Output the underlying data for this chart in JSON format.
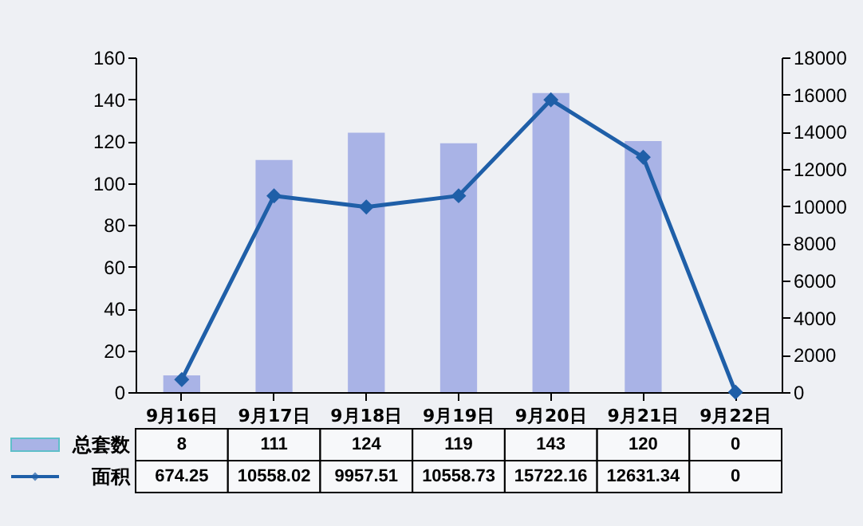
{
  "chart_data": {
    "type": "bar",
    "categories": [
      "9月16日",
      "9月17日",
      "9月18日",
      "9月19日",
      "9月20日",
      "9月21日",
      "9月22日"
    ],
    "series": [
      {
        "name": "总套数",
        "color": "#a9b3e6",
        "values": [
          8,
          111,
          124,
          119,
          143,
          120,
          0
        ]
      },
      {
        "name": "面积",
        "type": "line",
        "axis": "y2",
        "color": "#1f5fa8",
        "values": [
          674.25,
          10558.02,
          9957.51,
          10558.73,
          15722.16,
          12631.34,
          0
        ]
      }
    ],
    "ylim": [
      0,
      160
    ],
    "yticks": [
      0,
      20,
      40,
      60,
      80,
      100,
      120,
      140,
      160
    ],
    "y2lim": [
      0,
      18000
    ],
    "y2ticks": [
      0,
      2000,
      4000,
      6000,
      8000,
      10000,
      12000,
      14000,
      16000,
      18000
    ],
    "data_labels": true,
    "legend": "bottom left",
    "grid": false,
    "marker": "diamond",
    "line_style": "solid"
  }
}
